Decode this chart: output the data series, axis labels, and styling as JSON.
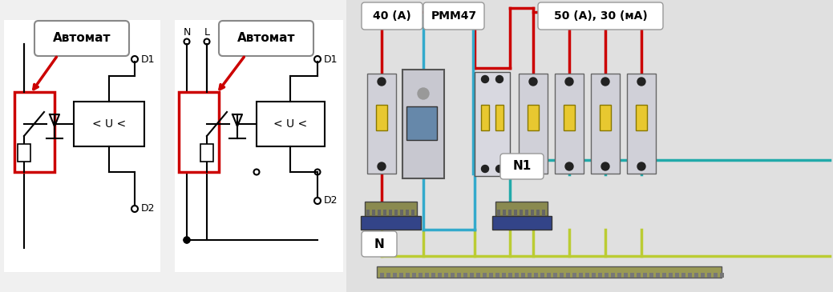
{
  "bg_color": "#f0f0f0",
  "diagram_bg": "#ffffff",
  "label1": "Автомат",
  "label2": "Автомат",
  "label_40A": "40 (А)",
  "label_RMM": "РММ47",
  "label_50A": "50 (А), 30 (мА)",
  "label_N": "N",
  "label_N1": "N1",
  "red": "#cc0000",
  "blue": "#3399cc",
  "green_yellow": "#cccc44",
  "teal": "#22aaaa",
  "font_size_label": 11,
  "font_size_small": 9
}
